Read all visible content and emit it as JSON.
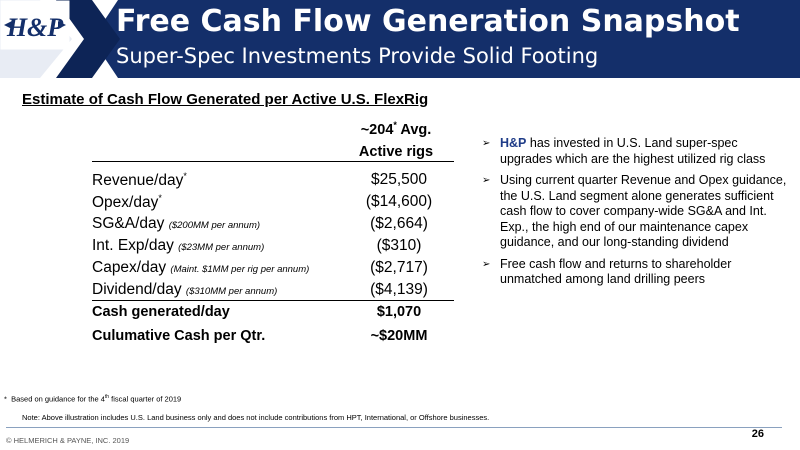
{
  "header": {
    "title": "Free Cash Flow Generation Snapshot",
    "subtitle": "Super-Spec Investments Provide Solid Footing",
    "logo_text": "H&P",
    "colors": {
      "navy": "#142f6a",
      "navy_dark": "#0d2456",
      "white": "#ffffff"
    }
  },
  "table": {
    "section_title": "Estimate of Cash Flow Generated per Active U.S. FlexRig",
    "column_header": {
      "line1_prefix": "~204",
      "line1_marker": "*",
      "line1_suffix": " Avg.",
      "line2": "Active rigs"
    },
    "rows": [
      {
        "label": "Revenue/day",
        "marker": "*",
        "note": "",
        "value": "$25,500"
      },
      {
        "label": "Opex/day",
        "marker": "*",
        "note": "",
        "value": "($14,600)"
      },
      {
        "label": "SG&A/day ",
        "marker": "",
        "note": "($200MM per annum)",
        "value": "($2,664)"
      },
      {
        "label": "Int. Exp/day ",
        "marker": "",
        "note": "($23MM per annum)",
        "value": "($310)"
      },
      {
        "label": "Capex/day ",
        "marker": "",
        "note": "(Maint. $1MM per rig per annum)",
        "value": "($2,717)"
      },
      {
        "label": "Dividend/day ",
        "marker": "",
        "note": "($310MM per annum)",
        "value": "($4,139)"
      }
    ],
    "totals": [
      {
        "label": "Cash generated/day",
        "value": "$1,070"
      },
      {
        "label": "Culumative Cash per Qtr.",
        "value": "~$20MM"
      }
    ]
  },
  "bullets": [
    {
      "lead": "H&P",
      "text": " has invested in U.S. Land super-spec upgrades which are the highest utilized rig class"
    },
    {
      "lead": "",
      "text": "Using current quarter Revenue and Opex guidance, the U.S. Land segment alone generates sufficient cash flow to cover company-wide SG&A and Int. Exp., the high end of our maintenance capex guidance, and our long-standing dividend"
    },
    {
      "lead": "",
      "text": "Free cash flow and returns to shareholder unmatched among land drilling peers"
    }
  ],
  "bullet_marker": "➢",
  "footnotes": {
    "star": "*",
    "line1_prefix": "Based on guidance for the 4",
    "line1_sup": "th",
    "line1_suffix": " fiscal quarter of 2019",
    "line2": "Note:  Above illustration includes U.S. Land business only and does not include contributions from HPT, International, or Offshore businesses."
  },
  "footer": {
    "copyright": "© HELMERICH & PAYNE, INC. 2019",
    "page_number": "26"
  }
}
